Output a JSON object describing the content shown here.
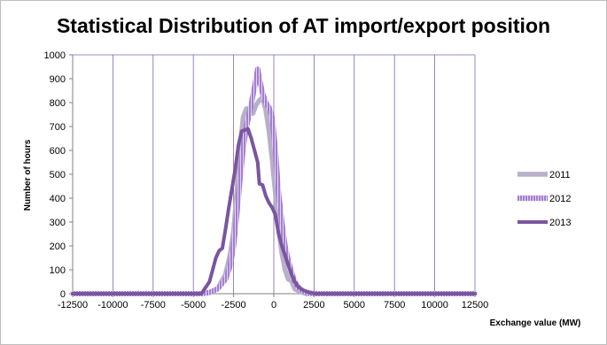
{
  "chart_data": {
    "type": "line",
    "title": "Statistical Distribution of AT import/export position",
    "xlabel": "Exchange value (MW)",
    "ylabel": "Number of hours",
    "xlim": [
      -12500,
      12500
    ],
    "ylim": [
      0,
      1000
    ],
    "xticks": [
      "-12500",
      "-10000",
      "-7500",
      "-5000",
      "-2500",
      "0",
      "2500",
      "5000",
      "7500",
      "10000",
      "12500"
    ],
    "yticks": [
      "0",
      "100",
      "200",
      "300",
      "400",
      "500",
      "600",
      "700",
      "800",
      "900",
      "1000"
    ],
    "grid": "vertical",
    "legend_position": "right",
    "series": [
      {
        "name": "2011",
        "color": "#b7b0c8",
        "style": "thick-solid",
        "points": [
          [
            -12500,
            0
          ],
          [
            -5000,
            0
          ],
          [
            -4500,
            0
          ],
          [
            -4000,
            5
          ],
          [
            -3500,
            20
          ],
          [
            -3000,
            80
          ],
          [
            -2700,
            170
          ],
          [
            -2500,
            260
          ],
          [
            -2300,
            420
          ],
          [
            -2100,
            610
          ],
          [
            -1900,
            740
          ],
          [
            -1700,
            775
          ],
          [
            -1500,
            765
          ],
          [
            -1300,
            755
          ],
          [
            -1100,
            790
          ],
          [
            -900,
            810
          ],
          [
            -700,
            820
          ],
          [
            -500,
            770
          ],
          [
            -300,
            680
          ],
          [
            -100,
            560
          ],
          [
            100,
            420
          ],
          [
            300,
            280
          ],
          [
            500,
            170
          ],
          [
            700,
            100
          ],
          [
            900,
            60
          ],
          [
            1100,
            55
          ],
          [
            1300,
            20
          ],
          [
            1600,
            10
          ],
          [
            2000,
            0
          ],
          [
            2500,
            0
          ],
          [
            12500,
            0
          ]
        ]
      },
      {
        "name": "2012",
        "color": "#a47fcf",
        "style": "hatched",
        "points": [
          [
            -12500,
            0
          ],
          [
            -5000,
            0
          ],
          [
            -4500,
            0
          ],
          [
            -4000,
            5
          ],
          [
            -3500,
            20
          ],
          [
            -3000,
            60
          ],
          [
            -2700,
            120
          ],
          [
            -2500,
            200
          ],
          [
            -2300,
            330
          ],
          [
            -2100,
            480
          ],
          [
            -1900,
            610
          ],
          [
            -1700,
            700
          ],
          [
            -1500,
            760
          ],
          [
            -1300,
            830
          ],
          [
            -1100,
            900
          ],
          [
            -1000,
            940
          ],
          [
            -900,
            900
          ],
          [
            -700,
            840
          ],
          [
            -500,
            800
          ],
          [
            -300,
            780
          ],
          [
            -100,
            740
          ],
          [
            100,
            600
          ],
          [
            300,
            420
          ],
          [
            500,
            300
          ],
          [
            700,
            200
          ],
          [
            900,
            140
          ],
          [
            1100,
            90
          ],
          [
            1300,
            50
          ],
          [
            1600,
            20
          ],
          [
            2000,
            5
          ],
          [
            2500,
            0
          ],
          [
            12500,
            0
          ]
        ]
      },
      {
        "name": "2013",
        "color": "#7a55a0",
        "style": "thick-solid",
        "points": [
          [
            -12500,
            0
          ],
          [
            -5000,
            0
          ],
          [
            -4500,
            0
          ],
          [
            -4300,
            20
          ],
          [
            -4000,
            50
          ],
          [
            -3800,
            100
          ],
          [
            -3600,
            150
          ],
          [
            -3400,
            180
          ],
          [
            -3200,
            190
          ],
          [
            -3000,
            270
          ],
          [
            -2800,
            360
          ],
          [
            -2600,
            440
          ],
          [
            -2400,
            520
          ],
          [
            -2200,
            620
          ],
          [
            -2000,
            680
          ],
          [
            -1800,
            685
          ],
          [
            -1600,
            690
          ],
          [
            -1400,
            650
          ],
          [
            -1200,
            600
          ],
          [
            -1000,
            550
          ],
          [
            -900,
            460
          ],
          [
            -700,
            455
          ],
          [
            -500,
            410
          ],
          [
            -300,
            380
          ],
          [
            -100,
            360
          ],
          [
            100,
            330
          ],
          [
            300,
            250
          ],
          [
            500,
            200
          ],
          [
            700,
            160
          ],
          [
            900,
            120
          ],
          [
            1100,
            80
          ],
          [
            1300,
            50
          ],
          [
            1500,
            30
          ],
          [
            1800,
            15
          ],
          [
            2200,
            5
          ],
          [
            2600,
            0
          ],
          [
            12500,
            0
          ]
        ]
      }
    ]
  }
}
